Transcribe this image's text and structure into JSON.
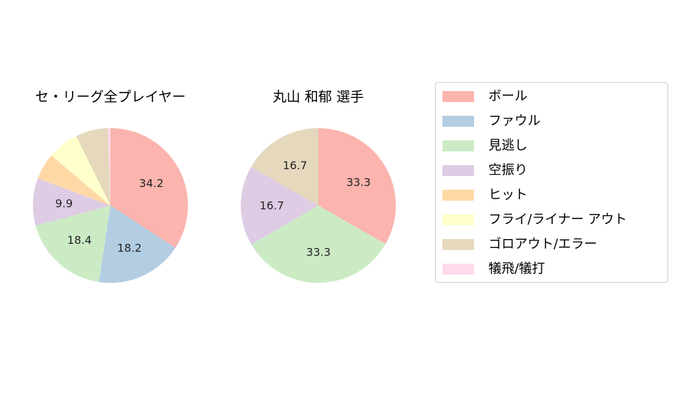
{
  "chart_data": [
    {
      "type": "pie",
      "title": "セ・リーグ全プレイヤー",
      "categories": [
        "ボール",
        "ファウル",
        "見逃し",
        "空振り",
        "ヒット",
        "フライ/ライナー アウト",
        "ゴロアウト/エラー",
        "犠飛/犠打"
      ],
      "values": [
        34.2,
        18.2,
        18.4,
        9.9,
        5.5,
        6.5,
        6.8,
        0.5
      ],
      "labels": [
        "34.2",
        "18.2",
        "18.4",
        "9.9",
        "",
        "",
        "",
        ""
      ]
    },
    {
      "type": "pie",
      "title": "丸山 和郁  選手",
      "categories": [
        "ボール",
        "ファウル",
        "見逃し",
        "空振り",
        "ヒット",
        "フライ/ライナー アウト",
        "ゴロアウト/エラー",
        "犠飛/犠打"
      ],
      "values": [
        33.3,
        0,
        33.3,
        16.7,
        0,
        0,
        16.7,
        0
      ],
      "labels": [
        "33.3",
        "",
        "33.3",
        "16.7",
        "",
        "",
        "16.7",
        ""
      ]
    }
  ],
  "legend": {
    "placement": "right",
    "items": [
      {
        "label": "ボール",
        "color": "#fbb4ae"
      },
      {
        "label": "ファウル",
        "color": "#b3cde3"
      },
      {
        "label": "見逃し",
        "color": "#ccebc5"
      },
      {
        "label": "空振り",
        "color": "#decbe4"
      },
      {
        "label": "ヒット",
        "color": "#fed9a6"
      },
      {
        "label": "フライ/ライナー アウト",
        "color": "#ffffcc"
      },
      {
        "label": "ゴロアウト/エラー",
        "color": "#e5d8bd"
      },
      {
        "label": "犠飛/犠打",
        "color": "#fddaec"
      }
    ]
  }
}
